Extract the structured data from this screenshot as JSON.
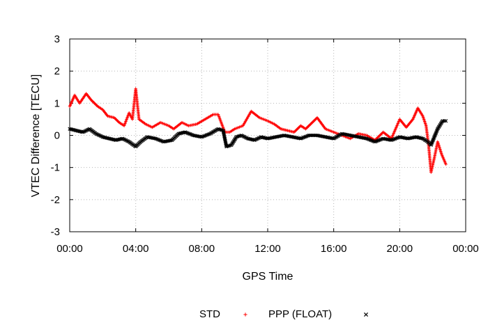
{
  "chart_data": {
    "type": "scatter",
    "title": "",
    "xlabel": "GPS Time",
    "ylabel": "VTEC Difference [TECU]",
    "x_unit": "hours",
    "xlim": [
      0,
      24
    ],
    "ylim": [
      -3,
      3
    ],
    "x_ticks": [
      0,
      4,
      8,
      12,
      16,
      20,
      24
    ],
    "x_tick_labels": [
      "00:00",
      "04:00",
      "08:00",
      "12:00",
      "16:00",
      "20:00",
      "00:00"
    ],
    "y_ticks": [
      -3,
      -2,
      -1,
      0,
      1,
      2,
      3
    ],
    "y_tick_labels": [
      "-3",
      "-2",
      "-1",
      "0",
      "1",
      "2",
      "3"
    ],
    "grid": true,
    "legend_position": "bottom",
    "series": [
      {
        "name": "STD",
        "marker": "+",
        "color": "#ff0000",
        "x": [
          0.0,
          0.3,
          0.6,
          1.0,
          1.3,
          1.7,
          2.0,
          2.3,
          2.7,
          3.0,
          3.3,
          3.6,
          3.8,
          4.0,
          4.2,
          4.6,
          5.0,
          5.5,
          6.0,
          6.3,
          6.8,
          7.2,
          7.7,
          8.2,
          8.7,
          9.0,
          9.4,
          9.7,
          10.0,
          10.5,
          11.0,
          11.5,
          12.0,
          12.4,
          12.8,
          13.2,
          13.6,
          14.0,
          14.3,
          14.7,
          15.0,
          15.5,
          16.0,
          16.5,
          17.0,
          17.5,
          18.0,
          18.5,
          19.0,
          19.5,
          20.0,
          20.4,
          20.8,
          21.1,
          21.4,
          21.6,
          21.75,
          21.9,
          22.1,
          22.3,
          22.55,
          22.8
        ],
        "y": [
          0.9,
          1.25,
          1.0,
          1.3,
          1.1,
          0.9,
          0.8,
          0.6,
          0.55,
          0.4,
          0.3,
          0.7,
          0.5,
          1.45,
          0.5,
          0.35,
          0.25,
          0.4,
          0.3,
          0.2,
          0.4,
          0.3,
          0.35,
          0.5,
          0.65,
          0.65,
          0.1,
          0.1,
          0.2,
          0.3,
          0.75,
          0.55,
          0.45,
          0.35,
          0.2,
          0.15,
          0.1,
          0.3,
          0.2,
          0.4,
          0.55,
          0.2,
          0.1,
          0.0,
          -0.1,
          0.05,
          0.0,
          -0.15,
          0.1,
          -0.1,
          0.5,
          0.25,
          0.5,
          0.85,
          0.6,
          0.3,
          -0.3,
          -1.15,
          -0.7,
          -0.2,
          -0.6,
          -0.9
        ]
      },
      {
        "name": "PPP (FLOAT)",
        "marker": "x",
        "color": "#000000",
        "x": [
          0.0,
          0.4,
          0.8,
          1.2,
          1.6,
          2.0,
          2.4,
          2.8,
          3.2,
          3.6,
          4.0,
          4.3,
          4.7,
          5.2,
          5.7,
          6.2,
          6.6,
          7.0,
          7.5,
          8.0,
          8.5,
          9.0,
          9.3,
          9.5,
          9.8,
          10.1,
          10.4,
          10.8,
          11.2,
          11.6,
          12.0,
          12.5,
          13.0,
          13.5,
          14.0,
          14.5,
          15.0,
          15.5,
          16.0,
          16.5,
          17.0,
          17.5,
          18.0,
          18.5,
          19.0,
          19.5,
          20.0,
          20.5,
          21.0,
          21.4,
          21.7,
          21.9,
          22.1,
          22.3,
          22.6,
          22.8
        ],
        "y": [
          0.2,
          0.15,
          0.1,
          0.2,
          0.05,
          -0.05,
          -0.1,
          -0.15,
          -0.1,
          -0.2,
          -0.35,
          -0.2,
          -0.05,
          -0.1,
          -0.2,
          -0.15,
          0.05,
          0.1,
          0.0,
          -0.05,
          0.05,
          0.2,
          0.15,
          -0.35,
          -0.3,
          -0.05,
          0.0,
          -0.1,
          -0.15,
          -0.05,
          -0.1,
          -0.05,
          0.0,
          -0.05,
          -0.1,
          0.0,
          0.0,
          -0.05,
          -0.1,
          0.05,
          0.0,
          -0.05,
          -0.1,
          -0.2,
          -0.1,
          -0.15,
          -0.05,
          -0.1,
          -0.05,
          -0.1,
          -0.2,
          -0.3,
          -0.05,
          0.2,
          0.45,
          0.45
        ]
      }
    ]
  }
}
